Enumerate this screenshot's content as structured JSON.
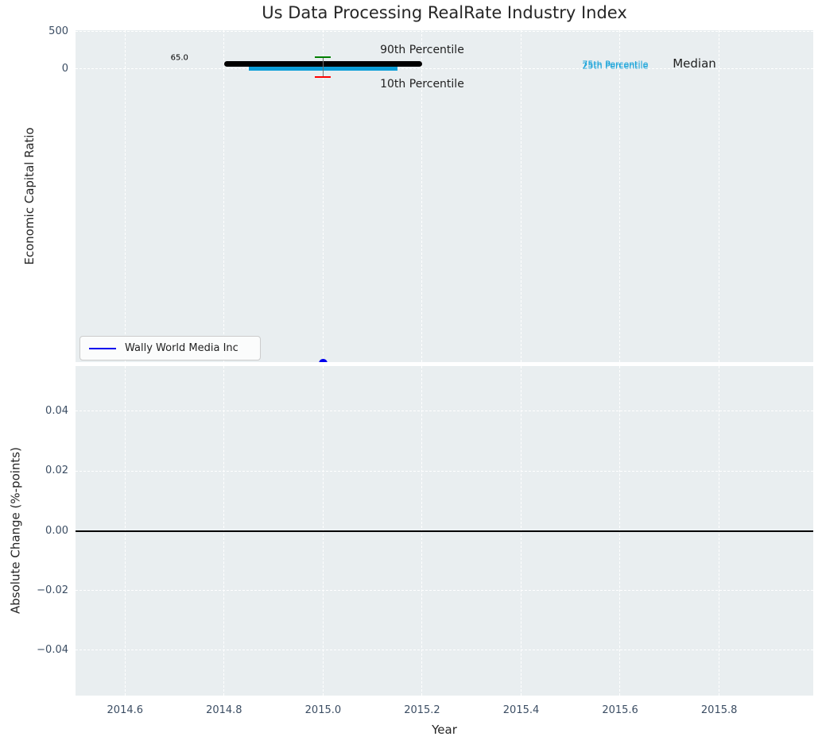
{
  "chart_data": [
    {
      "type": "line",
      "title": "Us Data Processing RealRate Industry Index",
      "ylabel": "Economic Capital Ratio",
      "xlim": [
        2014.5,
        2015.99
      ],
      "ylim": [
        -3975,
        522
      ],
      "grid": true,
      "background": "#e9eef0",
      "yticks": [
        {
          "v": 500,
          "label": "500"
        },
        {
          "v": 0,
          "label": "0"
        }
      ],
      "series": [
        {
          "name": "Median",
          "color": "#000000",
          "thickness": 7,
          "rounded": true,
          "x": [
            2014.8,
            2015.2
          ],
          "y": 65.0
        },
        {
          "name": "75th Percentile",
          "color": "#0d9fd8",
          "thickness": 4,
          "rounded": false,
          "x": [
            2014.85,
            2015.15
          ],
          "y": 10
        },
        {
          "name": "25th Percentile",
          "color": "#0d9fd8",
          "thickness": 4,
          "rounded": false,
          "x": [
            2014.85,
            2015.15
          ],
          "y": 0
        }
      ],
      "errorbar": {
        "x": 2015.0,
        "p90": 155,
        "p10": -113,
        "cap_half_width": 0.016,
        "p90_color": "#008000",
        "p10_color": "#ff0000",
        "stem_color": "#707070"
      },
      "point": {
        "name": "Wally World Media Inc",
        "x": 2015.0,
        "y": -3990,
        "color": "#0000ee",
        "diameter": 11
      },
      "annotations": [
        {
          "name": "median-value-label",
          "text": "65.0",
          "x": 2014.71,
          "y": 145,
          "color": "#000000",
          "size": 10
        },
        {
          "name": "p90-label",
          "text": "90th Percentile",
          "x": 2015.2,
          "y": 253,
          "color": "#1f1f1f",
          "size": 14
        },
        {
          "name": "p10-label",
          "text": "10th Percentile",
          "x": 2015.2,
          "y": -210,
          "color": "#1f1f1f",
          "size": 14
        },
        {
          "name": "p75-label",
          "text": "75th Percentile",
          "x": 2015.59,
          "y": 55,
          "color": "#0d9fd8",
          "size": 11
        },
        {
          "name": "p25-label",
          "text": "25th Percentile",
          "x": 2015.59,
          "y": 40,
          "color": "#0d9fd8",
          "size": 11
        },
        {
          "name": "median-label",
          "text": "Median",
          "x": 2015.75,
          "y": 70,
          "color": "#1f1f1f",
          "size": 15
        }
      ],
      "legend": {
        "label": "Wally World Media Inc",
        "line_color": "#0000ee",
        "position": "lower left"
      }
    },
    {
      "type": "line",
      "ylabel": "Absolute Change (%-points)",
      "xlabel": "Year",
      "xlim": [
        2014.5,
        2015.99
      ],
      "ylim": [
        -0.0552,
        0.0552
      ],
      "grid": true,
      "background": "#e9eef0",
      "yticks": [
        {
          "v": 0.04,
          "label": "0.04"
        },
        {
          "v": 0.02,
          "label": "0.02"
        },
        {
          "v": 0.0,
          "label": "0.00"
        },
        {
          "v": -0.02,
          "label": "−0.02"
        },
        {
          "v": -0.04,
          "label": "−0.04"
        }
      ],
      "xticks": [
        {
          "v": 2014.6,
          "label": "2014.6"
        },
        {
          "v": 2014.8,
          "label": "2014.8"
        },
        {
          "v": 2015.0,
          "label": "2015.0"
        },
        {
          "v": 2015.2,
          "label": "2015.2"
        },
        {
          "v": 2015.4,
          "label": "2015.4"
        },
        {
          "v": 2015.6,
          "label": "2015.6"
        },
        {
          "v": 2015.8,
          "label": "2015.8"
        }
      ],
      "zero_line": {
        "y": 0.0,
        "color": "#000000",
        "thickness": 2
      }
    }
  ],
  "colors": {
    "plot_background": "#e9eef0",
    "gridline": "#ffffff",
    "tick_label": "#3b4d63",
    "text": "#262626"
  }
}
